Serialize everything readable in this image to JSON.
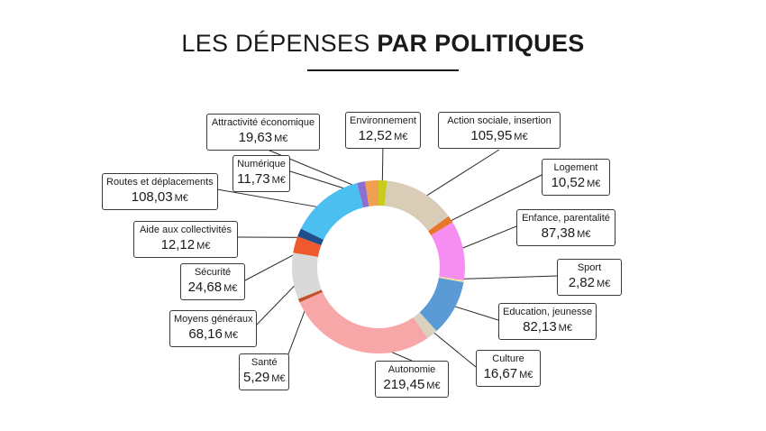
{
  "title": {
    "light": "LES DÉPENSES ",
    "bold": "PAR POLITIQUES"
  },
  "chart_data": {
    "type": "pie",
    "unit": "M€",
    "slices": [
      {
        "label": "Environnement",
        "value": 12.52,
        "display": "12,52",
        "color": "#c9cc1c"
      },
      {
        "label": "Action sociale, insertion",
        "value": 105.95,
        "display": "105,95",
        "color": "#d9cdb8"
      },
      {
        "label": "Logement",
        "value": 10.52,
        "display": "10,52",
        "color": "#e8762a"
      },
      {
        "label": "Enfance, parentalité",
        "value": 87.38,
        "display": "87,38",
        "color": "#f58ef0"
      },
      {
        "label": "Sport",
        "value": 2.82,
        "display": "2,82",
        "color": "#f2dfa2"
      },
      {
        "label": "Education, jeunesse",
        "value": 82.13,
        "display": "82,13",
        "color": "#5b9bd5"
      },
      {
        "label": "Culture",
        "value": 16.67,
        "display": "16,67",
        "color": "#d8d2be"
      },
      {
        "label": "Autonomie",
        "value": 219.45,
        "display": "219,45",
        "color": "#f8a7a8"
      },
      {
        "label": "Santé",
        "value": 5.29,
        "display": "5,29",
        "color": "#c0522b"
      },
      {
        "label": "Moyens généraux",
        "value": 68.16,
        "display": "68,16",
        "color": "#d9d9d9"
      },
      {
        "label": "Sécurité",
        "value": 24.68,
        "display": "24,68",
        "color": "#ee5a2e"
      },
      {
        "label": "Aide aux collectivités",
        "value": 12.12,
        "display": "12,12",
        "color": "#1f4e8c"
      },
      {
        "label": "Routes et déplacements",
        "value": 108.03,
        "display": "108,03",
        "color": "#4bbff0"
      },
      {
        "label": "Numérique",
        "value": 11.73,
        "display": "11,73",
        "color": "#8c6fd1"
      },
      {
        "label": "Attractivité économique",
        "value": 19.63,
        "display": "19,63",
        "color": "#f0a050"
      }
    ]
  }
}
